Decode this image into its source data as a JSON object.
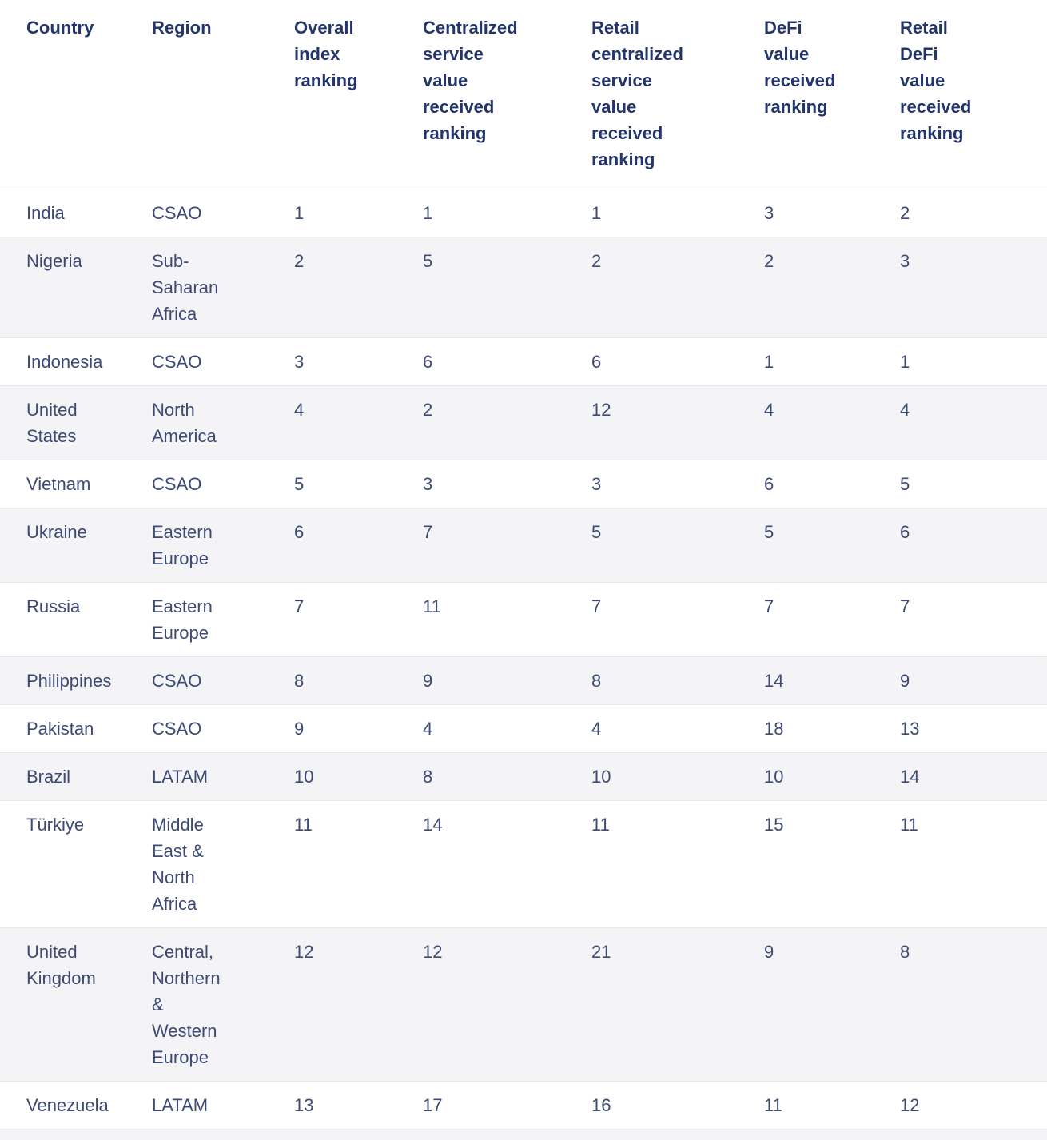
{
  "chart_data": {
    "type": "table",
    "columns": [
      "Country",
      "Region",
      "Overall index ranking",
      "Centralized service value received ranking",
      "Retail centralized service value received ranking",
      "DeFi value received ranking",
      "Retail DeFi value received ranking"
    ],
    "column_keys": [
      "country",
      "region",
      "overall-index-ranking",
      "centralized-service-value-received-ranking",
      "retail-centralized-service-value-received-ranking",
      "defi-value-received-ranking",
      "retail-defi-value-received-ranking"
    ],
    "rows": [
      [
        "India",
        "CSAO",
        "1",
        "1",
        "1",
        "3",
        "2"
      ],
      [
        "Nigeria",
        "Sub-Saharan Africa",
        "2",
        "5",
        "2",
        "2",
        "3"
      ],
      [
        "Indonesia",
        "CSAO",
        "3",
        "6",
        "6",
        "1",
        "1"
      ],
      [
        "United States",
        "North America",
        "4",
        "2",
        "12",
        "4",
        "4"
      ],
      [
        "Vietnam",
        "CSAO",
        "5",
        "3",
        "3",
        "6",
        "5"
      ],
      [
        "Ukraine",
        "Eastern Europe",
        "6",
        "7",
        "5",
        "5",
        "6"
      ],
      [
        "Russia",
        "Eastern Europe",
        "7",
        "11",
        "7",
        "7",
        "7"
      ],
      [
        "Philippines",
        "CSAO",
        "8",
        "9",
        "8",
        "14",
        "9"
      ],
      [
        "Pakistan",
        "CSAO",
        "9",
        "4",
        "4",
        "18",
        "13"
      ],
      [
        "Brazil",
        "LATAM",
        "10",
        "8",
        "10",
        "10",
        "14"
      ],
      [
        "Türkiye",
        "Middle East & North Africa",
        "11",
        "14",
        "11",
        "15",
        "11"
      ],
      [
        "United Kingdom",
        "Central, Northern & Western Europe",
        "12",
        "12",
        "21",
        "9",
        "8"
      ],
      [
        "Venezuela",
        "LATAM",
        "13",
        "17",
        "16",
        "11",
        "12"
      ]
    ]
  },
  "colors": {
    "header_text": "#23356b",
    "body_text": "#3c4a74",
    "row_alt_bg": "#f4f4f7",
    "row_border": "#e7e7ed",
    "header_border": "#dcdce4",
    "background": "#ffffff"
  }
}
